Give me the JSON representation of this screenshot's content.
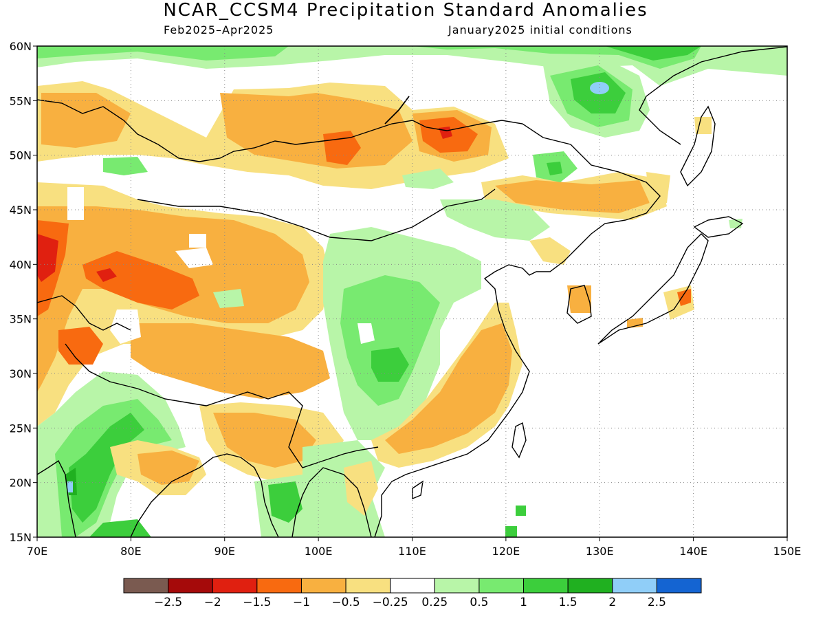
{
  "title": "NCAR_CCSM4 Precipitation Standard Anomalies",
  "subtitle_left": "Feb2025–Apr2025",
  "subtitle_right": "January2025 initial conditions",
  "map": {
    "lon_range": [
      70,
      150
    ],
    "lat_range": [
      15,
      60
    ],
    "lon_ticks": [
      "70E",
      "80E",
      "90E",
      "100E",
      "110E",
      "120E",
      "130E",
      "140E",
      "150E"
    ],
    "lat_ticks": [
      "15N",
      "20N",
      "25N",
      "30N",
      "35N",
      "40N",
      "45N",
      "50N",
      "55N",
      "60N"
    ],
    "grid": true
  },
  "legend": {
    "labels": [
      "−2.5",
      "−2",
      "−1.5",
      "−1",
      "−0.5",
      "−0.25",
      "0.25",
      "0.5",
      "1",
      "1.5",
      "2",
      "2.5"
    ],
    "colors": [
      "#7a5a50",
      "#a50a0a",
      "#e02010",
      "#f86a10",
      "#f8b040",
      "#f8e080",
      "#ffffff",
      "#b8f5a8",
      "#78ea70",
      "#3cce3c",
      "#20b020",
      "#90cef8",
      "#1464d2"
    ]
  }
}
